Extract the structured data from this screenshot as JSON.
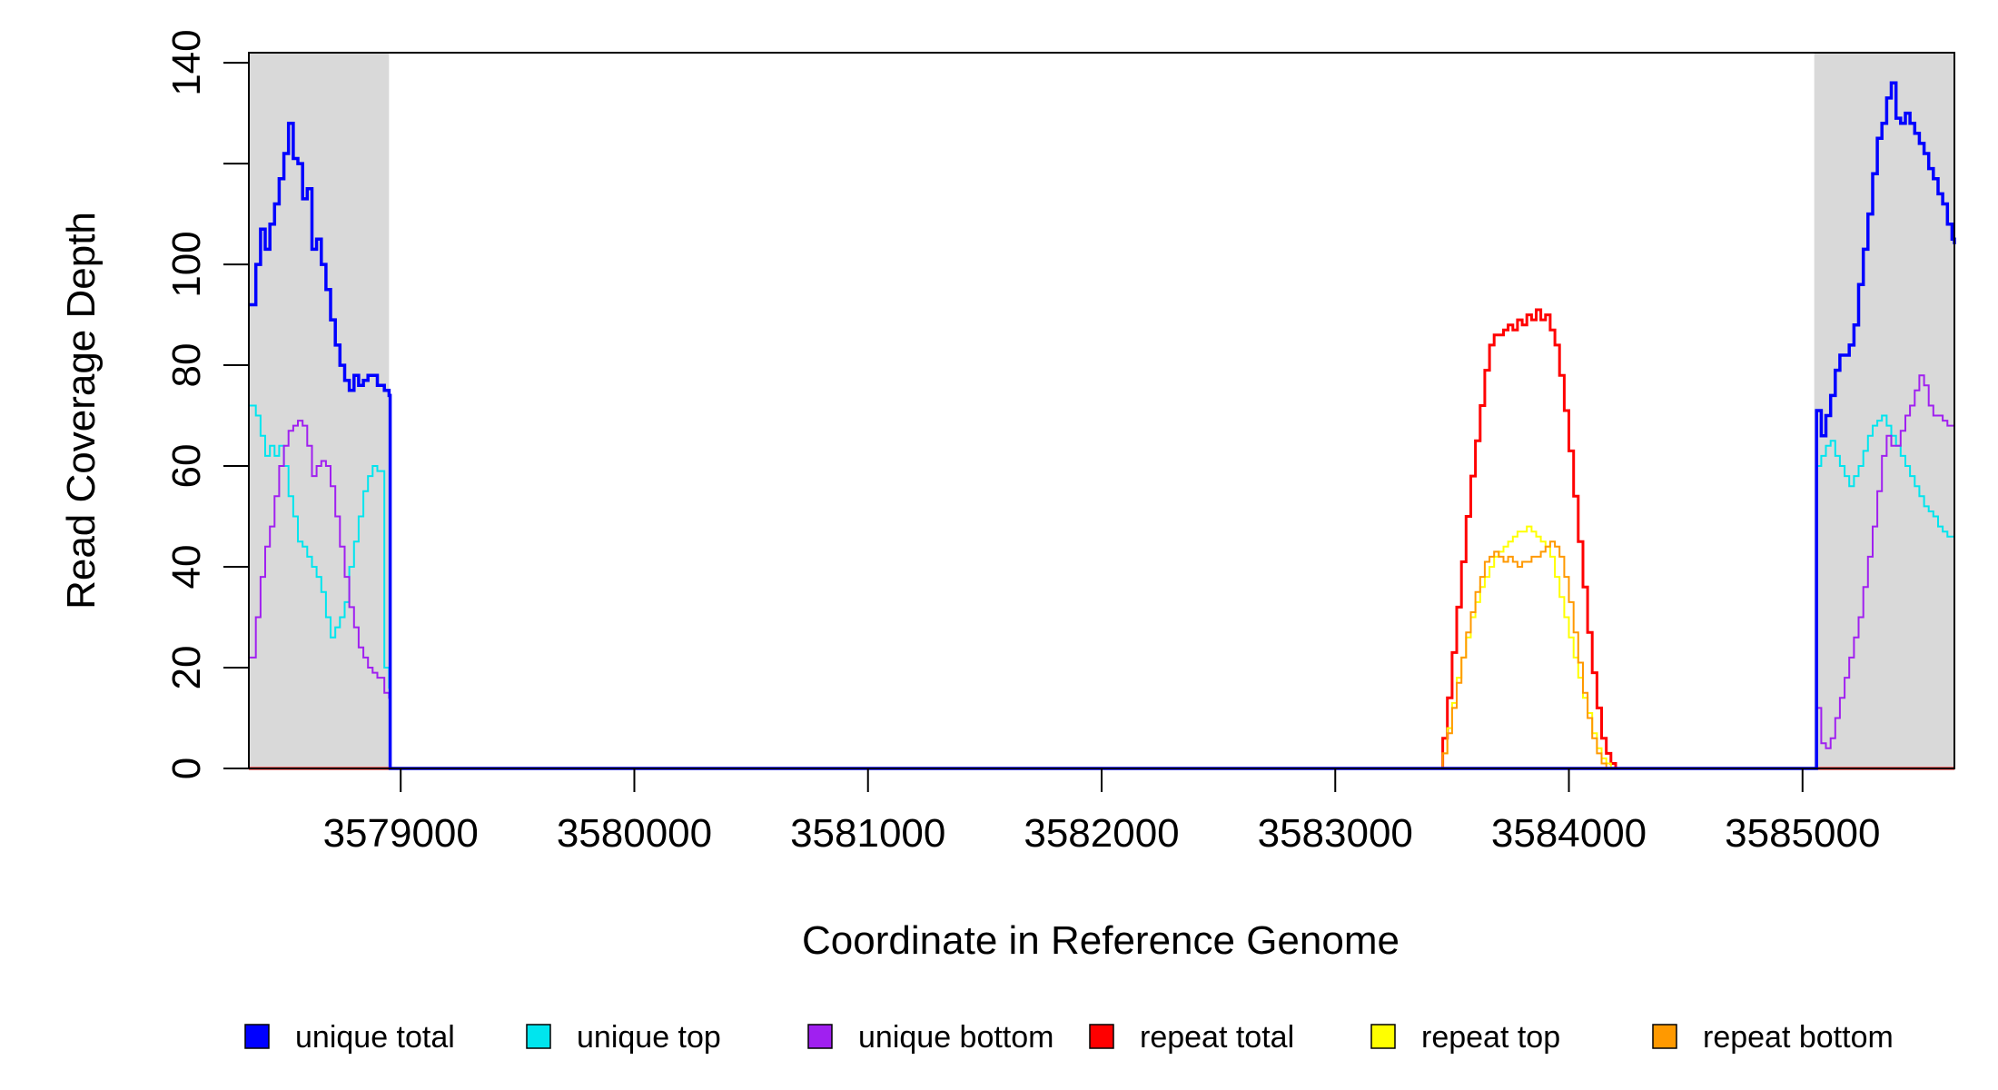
{
  "chart_data": {
    "type": "line",
    "title": "",
    "xlabel": "Coordinate in Reference Genome",
    "ylabel": "Read Coverage Depth",
    "xlim": [
      3578350,
      3585650
    ],
    "ylim": [
      0,
      142
    ],
    "x_ticks": [
      3579000,
      3580000,
      3581000,
      3582000,
      3583000,
      3584000,
      3585000
    ],
    "x_tick_labels": [
      "3579000",
      "3580000",
      "3581000",
      "3582000",
      "3583000",
      "3584000",
      "3585000"
    ],
    "y_ticks": [
      0,
      20,
      40,
      60,
      80,
      100,
      120,
      140
    ],
    "y_tick_labels": [
      "0",
      "20",
      "40",
      "60",
      "80",
      "100",
      "",
      "140"
    ],
    "grid": false,
    "legend_position": "bottom",
    "shaded_regions": [
      {
        "x": [
          3578350,
          3578950
        ],
        "color": "#d9d9d9"
      },
      {
        "x": [
          3585050,
          3585650
        ],
        "color": "#d9d9d9"
      }
    ],
    "series": [
      {
        "name": "unique total",
        "color": "#0000ff",
        "x": [
          3578350,
          3578380,
          3578400,
          3578420,
          3578440,
          3578460,
          3578480,
          3578500,
          3578520,
          3578540,
          3578560,
          3578580,
          3578600,
          3578620,
          3578640,
          3578660,
          3578680,
          3578700,
          3578720,
          3578740,
          3578760,
          3578780,
          3578800,
          3578820,
          3578840,
          3578860,
          3578880,
          3578900,
          3578930,
          3578950,
          3578955,
          3585050,
          3585060,
          3585080,
          3585100,
          3585120,
          3585140,
          3585160,
          3585180,
          3585200,
          3585220,
          3585240,
          3585260,
          3585280,
          3585300,
          3585320,
          3585340,
          3585360,
          3585380,
          3585400,
          3585420,
          3585440,
          3585460,
          3585480,
          3585500,
          3585520,
          3585540,
          3585560,
          3585580,
          3585600,
          3585620,
          3585640,
          3585650
        ],
        "y": [
          92,
          100,
          107,
          103,
          108,
          112,
          117,
          122,
          128,
          121,
          120,
          113,
          115,
          103,
          105,
          100,
          95,
          89,
          84,
          80,
          77,
          75,
          78,
          76,
          77,
          78,
          78,
          76,
          75,
          74,
          0,
          0,
          71,
          66,
          70,
          74,
          79,
          82,
          82,
          84,
          88,
          96,
          103,
          110,
          118,
          125,
          128,
          133,
          136,
          129,
          128,
          130,
          128,
          126,
          124,
          122,
          119,
          117,
          114,
          112,
          108,
          105,
          104
        ]
      },
      {
        "name": "unique top",
        "color": "#00e5ee",
        "x": [
          3578350,
          3578380,
          3578400,
          3578420,
          3578440,
          3578460,
          3578480,
          3578500,
          3578520,
          3578540,
          3578560,
          3578580,
          3578600,
          3578620,
          3578640,
          3578660,
          3578680,
          3578700,
          3578720,
          3578740,
          3578760,
          3578780,
          3578800,
          3578820,
          3578840,
          3578860,
          3578880,
          3578900,
          3578930,
          3578950,
          3578955,
          3585050,
          3585060,
          3585080,
          3585100,
          3585120,
          3585140,
          3585160,
          3585180,
          3585200,
          3585220,
          3585240,
          3585260,
          3585280,
          3585300,
          3585320,
          3585340,
          3585360,
          3585380,
          3585400,
          3585420,
          3585440,
          3585460,
          3585480,
          3585500,
          3585520,
          3585540,
          3585560,
          3585580,
          3585600,
          3585620,
          3585640,
          3585650
        ],
        "y": [
          72,
          70,
          66,
          62,
          64,
          62,
          64,
          60,
          54,
          50,
          45,
          44,
          42,
          40,
          38,
          35,
          30,
          26,
          28,
          30,
          33,
          40,
          45,
          50,
          55,
          58,
          60,
          59,
          20,
          16,
          0,
          0,
          60,
          62,
          64,
          65,
          62,
          60,
          58,
          56,
          58,
          60,
          63,
          66,
          68,
          69,
          70,
          68,
          66,
          64,
          62,
          60,
          58,
          56,
          54,
          52,
          51,
          50,
          48,
          47,
          46,
          46,
          44
        ]
      },
      {
        "name": "unique bottom",
        "color": "#a020f0",
        "x": [
          3578350,
          3578380,
          3578400,
          3578420,
          3578440,
          3578460,
          3578480,
          3578500,
          3578520,
          3578540,
          3578560,
          3578580,
          3578600,
          3578620,
          3578640,
          3578660,
          3578680,
          3578700,
          3578720,
          3578740,
          3578760,
          3578780,
          3578800,
          3578820,
          3578840,
          3578860,
          3578880,
          3578900,
          3578930,
          3578950,
          3578955,
          3585050,
          3585060,
          3585080,
          3585100,
          3585120,
          3585140,
          3585160,
          3585180,
          3585200,
          3585220,
          3585240,
          3585260,
          3585280,
          3585300,
          3585320,
          3585340,
          3585360,
          3585380,
          3585400,
          3585420,
          3585440,
          3585460,
          3585480,
          3585500,
          3585520,
          3585540,
          3585560,
          3585580,
          3585600,
          3585620,
          3585640,
          3585650
        ],
        "y": [
          22,
          30,
          38,
          44,
          48,
          54,
          60,
          64,
          67,
          68,
          69,
          68,
          64,
          58,
          60,
          61,
          60,
          56,
          50,
          44,
          38,
          32,
          28,
          24,
          22,
          20,
          19,
          18,
          15,
          14,
          0,
          0,
          12,
          5,
          4,
          6,
          10,
          14,
          18,
          22,
          26,
          30,
          36,
          42,
          48,
          55,
          62,
          66,
          64,
          64,
          67,
          70,
          72,
          75,
          78,
          76,
          72,
          70,
          70,
          69,
          68,
          68,
          67
        ]
      },
      {
        "name": "repeat total",
        "color": "#ff0000",
        "x": [
          3578350,
          3583440,
          3583460,
          3583480,
          3583500,
          3583520,
          3583540,
          3583560,
          3583580,
          3583600,
          3583620,
          3583640,
          3583660,
          3583680,
          3583700,
          3583720,
          3583740,
          3583760,
          3583780,
          3583800,
          3583820,
          3583840,
          3583860,
          3583880,
          3583900,
          3583920,
          3583940,
          3583960,
          3583980,
          3584000,
          3584020,
          3584040,
          3584060,
          3584080,
          3584100,
          3584120,
          3584140,
          3584160,
          3584180,
          3584200,
          3584220,
          3585650
        ],
        "y": [
          0,
          0,
          6,
          14,
          23,
          32,
          41,
          50,
          58,
          65,
          72,
          79,
          84,
          86,
          86,
          87,
          88,
          87,
          89,
          88,
          90,
          89,
          91,
          89,
          90,
          87,
          84,
          78,
          71,
          63,
          54,
          45,
          36,
          27,
          19,
          12,
          6,
          3,
          1,
          0,
          0,
          0
        ]
      },
      {
        "name": "repeat top",
        "color": "#ffff00",
        "x": [
          3578350,
          3583440,
          3583460,
          3583480,
          3583500,
          3583520,
          3583540,
          3583560,
          3583580,
          3583600,
          3583620,
          3583640,
          3583660,
          3583680,
          3583700,
          3583720,
          3583740,
          3583760,
          3583780,
          3583800,
          3583820,
          3583840,
          3583860,
          3583880,
          3583900,
          3583920,
          3583940,
          3583960,
          3583980,
          3584000,
          3584020,
          3584040,
          3584060,
          3584080,
          3584100,
          3584120,
          3584140,
          3584160,
          3584180,
          3584200,
          3584220,
          3585650
        ],
        "y": [
          0,
          0,
          3,
          8,
          13,
          18,
          22,
          26,
          30,
          33,
          36,
          38,
          40,
          42,
          43,
          44,
          45,
          46,
          47,
          47,
          48,
          47,
          46,
          45,
          44,
          42,
          38,
          34,
          30,
          26,
          22,
          18,
          14,
          11,
          7,
          4,
          2,
          1,
          0,
          0,
          0,
          0
        ]
      },
      {
        "name": "repeat bottom",
        "color": "#ff9900",
        "x": [
          3578350,
          3583440,
          3583460,
          3583480,
          3583500,
          3583520,
          3583540,
          3583560,
          3583580,
          3583600,
          3583620,
          3583640,
          3583660,
          3583680,
          3583700,
          3583720,
          3583740,
          3583760,
          3583780,
          3583800,
          3583820,
          3583840,
          3583860,
          3583880,
          3583900,
          3583920,
          3583940,
          3583960,
          3583980,
          3584000,
          3584020,
          3584040,
          3584060,
          3584080,
          3584100,
          3584120,
          3584140,
          3584160,
          3584180,
          3584200,
          3584220,
          3585650
        ],
        "y": [
          0,
          0,
          3,
          7,
          12,
          17,
          22,
          27,
          31,
          35,
          38,
          41,
          42,
          43,
          42,
          41,
          42,
          41,
          40,
          41,
          41,
          42,
          42,
          43,
          44,
          45,
          44,
          42,
          38,
          33,
          27,
          21,
          15,
          10,
          6,
          3,
          1,
          0,
          0,
          0,
          0,
          0
        ]
      }
    ]
  }
}
